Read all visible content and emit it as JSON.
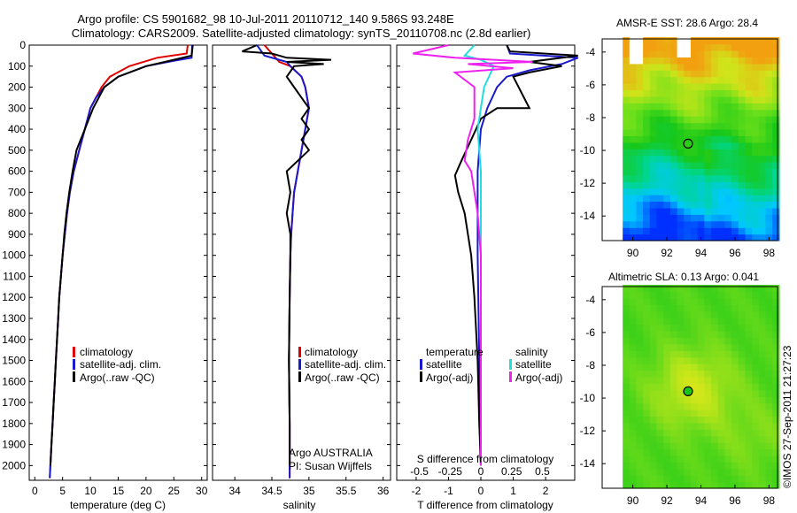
{
  "header": {
    "line1": "Argo profile: CS 5901682_98 10-Jul-2011 20110712_140 9.586S 93.248E",
    "line2": "Climatology: CARS2009. Satellite-adjusted climatology: synTS_20110708.nc (2.8d earlier)"
  },
  "footer_stamp": "©IMOS 27-Sep-2011 21:27:23",
  "colors": {
    "climatology": "#e00000",
    "satellite": "#1a1acc",
    "argo": "#000000",
    "salinity_sat": "#22dddd",
    "salinity_argo": "#ee22ee"
  },
  "chart_data": [
    {
      "type": "line",
      "title": "",
      "xlabel": "temperature (deg C)",
      "ylabel": "",
      "xlim": [
        -1,
        31
      ],
      "ylim": [
        2070,
        0
      ],
      "xticks": [
        "0",
        "5",
        "10",
        "15",
        "20",
        "25",
        "30"
      ],
      "xtick_values": [
        0,
        5,
        10,
        15,
        20,
        25,
        30
      ],
      "yticks": [
        "0",
        "100",
        "200",
        "300",
        "400",
        "500",
        "600",
        "700",
        "800",
        "900",
        "1000",
        "1100",
        "1200",
        "1300",
        "1400",
        "1500",
        "1600",
        "1700",
        "1800",
        "1900",
        "2000"
      ],
      "legend": {
        "position": "lower-center",
        "entries": [
          "climatology",
          "satellite-adj. clim.",
          "Argo(..raw -QC)"
        ]
      },
      "series": [
        {
          "name": "climatology",
          "color": "#e00000",
          "points": [
            [
              27.5,
              0
            ],
            [
              27.3,
              40
            ],
            [
              22,
              60
            ],
            [
              17,
              100
            ],
            [
              13.5,
              150
            ],
            [
              12,
              200
            ],
            [
              11,
              250
            ],
            [
              10,
              300
            ],
            [
              9,
              400
            ],
            [
              8,
              500
            ],
            [
              7,
              600
            ],
            [
              6.3,
              700
            ],
            [
              5.8,
              800
            ],
            [
              5.4,
              900
            ],
            [
              5,
              1000
            ],
            [
              4.7,
              1100
            ],
            [
              4.4,
              1200
            ],
            [
              4.2,
              1300
            ],
            [
              4,
              1400
            ],
            [
              3.8,
              1500
            ],
            [
              3.6,
              1600
            ],
            [
              3.4,
              1700
            ],
            [
              3.2,
              1800
            ],
            [
              3,
              1900
            ],
            [
              2.8,
              2000
            ],
            [
              2.7,
              2060
            ]
          ]
        },
        {
          "name": "satellite-adj. clim.",
          "color": "#1a1acc",
          "points": [
            [
              28.3,
              0
            ],
            [
              28.2,
              60
            ],
            [
              25,
              75
            ],
            [
              20,
              100
            ],
            [
              15,
              150
            ],
            [
              12.5,
              200
            ],
            [
              11,
              250
            ],
            [
              10,
              300
            ],
            [
              9,
              400
            ],
            [
              8,
              500
            ],
            [
              7,
              600
            ],
            [
              6.3,
              700
            ],
            [
              5.8,
              800
            ],
            [
              5.4,
              900
            ],
            [
              5,
              1000
            ],
            [
              4.7,
              1100
            ],
            [
              4.4,
              1200
            ],
            [
              4.2,
              1300
            ],
            [
              4,
              1400
            ],
            [
              3.8,
              1500
            ],
            [
              3.6,
              1600
            ],
            [
              3.4,
              1700
            ],
            [
              3.2,
              1800
            ],
            [
              3,
              1900
            ],
            [
              2.8,
              2000
            ],
            [
              2.7,
              2060
            ]
          ]
        },
        {
          "name": "Argo(..raw -QC)",
          "color": "#000000",
          "points": [
            [
              28.4,
              0
            ],
            [
              28.2,
              50
            ],
            [
              25,
              70
            ],
            [
              20,
              100
            ],
            [
              15,
              150
            ],
            [
              12.5,
              200
            ],
            [
              11.5,
              250
            ],
            [
              10.5,
              300
            ],
            [
              9,
              400
            ],
            [
              7.5,
              500
            ],
            [
              6.8,
              600
            ],
            [
              6.2,
              700
            ],
            [
              5.7,
              800
            ],
            [
              5.3,
              900
            ],
            [
              5,
              1000
            ],
            [
              4.7,
              1100
            ],
            [
              4.4,
              1200
            ],
            [
              4.2,
              1300
            ],
            [
              4,
              1400
            ],
            [
              3.8,
              1500
            ],
            [
              3.6,
              1600
            ],
            [
              3.4,
              1700
            ],
            [
              3.2,
              1800
            ],
            [
              3,
              1900
            ],
            [
              2.8,
              2000
            ]
          ]
        }
      ]
    },
    {
      "type": "line",
      "title": "",
      "xlabel": "salinity",
      "ylabel": "",
      "xlim": [
        33.7,
        36.1
      ],
      "ylim": [
        2070,
        0
      ],
      "xticks": [
        "34",
        "34.5",
        "35",
        "35.5",
        "36"
      ],
      "xtick_values": [
        34,
        34.5,
        35,
        35.5,
        36
      ],
      "legend": {
        "position": "lower-center",
        "entries": [
          "climatology",
          "satellite-adj. clim.",
          "Argo(..raw -QC)"
        ]
      },
      "annotation": {
        "line1": "Argo AUSTRALIA",
        "line2": "PI: Susan Wijffels"
      },
      "series": [
        {
          "name": "climatology",
          "color": "#e00000",
          "points": [
            [
              34.4,
              0
            ],
            [
              34.5,
              40
            ],
            [
              34.6,
              80
            ],
            [
              34.75,
              100
            ],
            [
              34.9,
              150
            ],
            [
              34.95,
              200
            ],
            [
              35.0,
              300
            ],
            [
              34.95,
              400
            ],
            [
              34.9,
              500
            ],
            [
              34.85,
              600
            ],
            [
              34.8,
              700
            ],
            [
              34.78,
              800
            ],
            [
              34.76,
              900
            ],
            [
              34.75,
              1000
            ],
            [
              34.74,
              1200
            ],
            [
              34.73,
              1500
            ],
            [
              34.74,
              1800
            ],
            [
              34.74,
              2060
            ]
          ]
        },
        {
          "name": "satellite-adj. clim.",
          "color": "#1a1acc",
          "points": [
            [
              34.3,
              0
            ],
            [
              34.4,
              50
            ],
            [
              34.7,
              80
            ],
            [
              34.75,
              100
            ],
            [
              34.9,
              150
            ],
            [
              34.95,
              200
            ],
            [
              35.0,
              300
            ],
            [
              34.95,
              400
            ],
            [
              34.9,
              500
            ],
            [
              34.85,
              600
            ],
            [
              34.8,
              700
            ],
            [
              34.78,
              800
            ],
            [
              34.76,
              900
            ],
            [
              34.75,
              1000
            ],
            [
              34.74,
              1200
            ],
            [
              34.73,
              1500
            ],
            [
              34.74,
              1800
            ],
            [
              34.74,
              2060
            ]
          ]
        },
        {
          "name": "Argo(..raw -QC)",
          "color": "#000000",
          "points": [
            [
              34.3,
              0
            ],
            [
              34.1,
              30
            ],
            [
              34.5,
              40
            ],
            [
              34.7,
              60
            ],
            [
              35.3,
              70
            ],
            [
              34.7,
              80
            ],
            [
              35.2,
              90
            ],
            [
              34.8,
              100
            ],
            [
              34.7,
              150
            ],
            [
              34.8,
              200
            ],
            [
              34.9,
              250
            ],
            [
              35.0,
              300
            ],
            [
              34.9,
              350
            ],
            [
              35.0,
              400
            ],
            [
              34.9,
              450
            ],
            [
              35.0,
              500
            ],
            [
              34.7,
              600
            ],
            [
              34.75,
              700
            ],
            [
              34.7,
              800
            ],
            [
              34.75,
              900
            ],
            [
              34.75,
              1000
            ],
            [
              34.74,
              1200
            ],
            [
              34.73,
              1500
            ],
            [
              34.74,
              1800
            ],
            [
              34.74,
              2000
            ]
          ]
        }
      ]
    },
    {
      "type": "line",
      "title": "",
      "xlabel": "T difference from climatology",
      "xlabel_top": "S difference from climatology",
      "xlim": [
        -2.6,
        2.9
      ],
      "ylim": [
        2070,
        0
      ],
      "xticks": [
        "-2",
        "-1",
        "0",
        "1",
        "2"
      ],
      "xtick_values": [
        -2,
        -1,
        0,
        1,
        2
      ],
      "xticks_top": [
        "-0.5",
        "-0.25",
        "0",
        "0.25",
        "0.5"
      ],
      "xticks_top_values": [
        -1.9,
        -0.95,
        0,
        0.95,
        1.9
      ],
      "legend": {
        "position": "lower-center",
        "groups": [
          {
            "heading": "temperature",
            "entries": [
              "satellite",
              "Argo(-adj)"
            ]
          },
          {
            "heading": "salinity",
            "entries": [
              "satellite",
              "Argo(-adj)"
            ]
          }
        ]
      },
      "series": [
        {
          "name": "temperature satellite",
          "color": "#1a1acc",
          "points": [
            [
              0.8,
              0
            ],
            [
              0.9,
              40
            ],
            [
              3,
              60
            ],
            [
              2.5,
              90
            ],
            [
              1.5,
              120
            ],
            [
              0.8,
              150
            ],
            [
              0.5,
              200
            ],
            [
              0.2,
              300
            ],
            [
              0,
              400
            ],
            [
              -0.1,
              600
            ],
            [
              -0.1,
              1000
            ],
            [
              -0.05,
              1500
            ],
            [
              0,
              2000
            ]
          ]
        },
        {
          "name": "temperature Argo(-adj)",
          "color": "#000000",
          "points": [
            [
              0.8,
              0
            ],
            [
              0.9,
              30
            ],
            [
              3,
              50
            ],
            [
              1.5,
              80
            ],
            [
              2.5,
              100
            ],
            [
              1.5,
              130
            ],
            [
              1.0,
              150
            ],
            [
              1.5,
              300
            ],
            [
              0.5,
              300
            ],
            [
              0,
              350
            ],
            [
              -0.3,
              450
            ],
            [
              -0.6,
              550
            ],
            [
              -0.8,
              620
            ],
            [
              -0.7,
              700
            ],
            [
              -0.5,
              800
            ],
            [
              -0.4,
              900
            ],
            [
              -0.3,
              1000
            ],
            [
              -0.2,
              1200
            ],
            [
              -0.1,
              1500
            ],
            [
              -0.05,
              1800
            ],
            [
              0,
              2000
            ]
          ]
        },
        {
          "name": "salinity satellite",
          "color": "#22dddd",
          "points": [
            [
              -0.2,
              0
            ],
            [
              -0.5,
              50
            ],
            [
              0,
              70
            ],
            [
              0.4,
              100
            ],
            [
              0.1,
              200
            ],
            [
              0,
              300
            ],
            [
              -0.1,
              400
            ],
            [
              0,
              600
            ],
            [
              0,
              1000
            ],
            [
              0,
              2000
            ]
          ]
        },
        {
          "name": "salinity Argo(-adj)",
          "color": "#ee22ee",
          "points": [
            [
              -1.0,
              0
            ],
            [
              -2.1,
              40
            ],
            [
              -0.8,
              60
            ],
            [
              1.6,
              80
            ],
            [
              -0.4,
              90
            ],
            [
              1.0,
              110
            ],
            [
              -0.8,
              130
            ],
            [
              -0.2,
              200
            ],
            [
              -0.2,
              350
            ],
            [
              -0.4,
              450
            ],
            [
              -0.5,
              550
            ],
            [
              -0.3,
              600
            ],
            [
              -0.1,
              800
            ],
            [
              0,
              1000
            ],
            [
              0,
              2000
            ]
          ]
        }
      ]
    },
    {
      "type": "heatmap",
      "title": "AMSR-E SST: 28.6 Argo: 28.4",
      "xticks": [
        "90",
        "92",
        "94",
        "96",
        "98"
      ],
      "xtick_values": [
        90,
        92,
        94,
        96,
        98
      ],
      "yticks": [
        "-4",
        "-6",
        "-8",
        "-10",
        "-12",
        "-14"
      ],
      "ytick_values": [
        -4,
        -6,
        -8,
        -10,
        -12,
        -14
      ],
      "xlim": [
        88.2,
        98.5
      ],
      "ylim": [
        -15.5,
        -3.2
      ],
      "argo_marker": {
        "lon": 93.248,
        "lat": -9.586
      },
      "colorscale": [
        "#0030ff",
        "#00c8ff",
        "#00d68a",
        "#18c818",
        "#6ee01a",
        "#d0e41a",
        "#f2a010"
      ]
    },
    {
      "type": "heatmap",
      "title": "Altimetric SLA: 0.13 Argo: 0.041",
      "xticks": [
        "90",
        "92",
        "94",
        "96",
        "98"
      ],
      "xtick_values": [
        90,
        92,
        94,
        96,
        98
      ],
      "yticks": [
        "-4",
        "-6",
        "-8",
        "-10",
        "-12",
        "-14"
      ],
      "ytick_values": [
        -4,
        -6,
        -8,
        -10,
        -12,
        -14
      ],
      "xlim": [
        88.2,
        98.5
      ],
      "ylim": [
        -15.5,
        -3.2
      ],
      "argo_marker": {
        "lon": 93.248,
        "lat": -9.586
      },
      "colorscale": [
        "#18c818",
        "#5ed81a",
        "#b4e41a",
        "#e8e81a"
      ]
    }
  ]
}
